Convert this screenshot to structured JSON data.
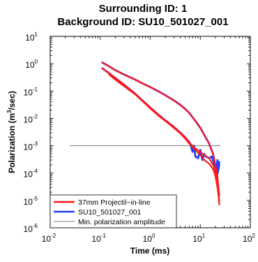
{
  "chart_data": {
    "type": "line",
    "title_lines": [
      "Surrounding ID: 1",
      "Background ID: SU10_501027_001"
    ],
    "xlabel": "Time (ms)",
    "ylabel_parts": [
      "Polarization (m",
      "3",
      "/sec)"
    ],
    "x_scale": "log",
    "y_scale": "log",
    "xlim": [
      0.01,
      100
    ],
    "ylim": [
      1e-06,
      10
    ],
    "x_ticks": [
      {
        "base": "10",
        "exp": "-2",
        "value": 0.01
      },
      {
        "base": "10",
        "exp": "-1",
        "value": 0.1
      },
      {
        "base": "10",
        "exp": "0",
        "value": 1
      },
      {
        "base": "10",
        "exp": "1",
        "value": 10
      },
      {
        "base": "10",
        "exp": "2",
        "value": 100
      }
    ],
    "y_ticks": [
      {
        "base": "10",
        "exp": "1",
        "value": 10
      },
      {
        "base": "10",
        "exp": "0",
        "value": 1
      },
      {
        "base": "10",
        "exp": "-1",
        "value": 0.1
      },
      {
        "base": "10",
        "exp": "-2",
        "value": 0.01
      },
      {
        "base": "10",
        "exp": "-3",
        "value": 0.001
      },
      {
        "base": "10",
        "exp": "-4",
        "value": 0.0001
      },
      {
        "base": "10",
        "exp": "-5",
        "value": 1e-05
      },
      {
        "base": "10",
        "exp": "-6",
        "value": 1e-06
      }
    ],
    "legend_position": "bottom-left",
    "series": [
      {
        "name": "SU10_501027_001",
        "color": "#1f3fff",
        "width": 2.8,
        "curves": [
          [
            [
              0.11,
              1.1
            ],
            [
              0.15,
              0.8
            ],
            [
              0.2,
              0.58
            ],
            [
              0.3,
              0.4
            ],
            [
              0.5,
              0.26
            ],
            [
              0.7,
              0.19
            ],
            [
              1.0,
              0.14
            ],
            [
              1.5,
              0.095
            ],
            [
              2.0,
              0.07
            ],
            [
              3.0,
              0.045
            ],
            [
              4.0,
              0.031
            ],
            [
              5.0,
              0.022
            ],
            [
              6.0,
              0.016
            ],
            [
              7.0,
              0.011
            ],
            [
              8.0,
              0.008
            ],
            [
              10.0,
              0.0045
            ],
            [
              12.0,
              0.0025
            ],
            [
              15.0,
              0.0012
            ],
            [
              18.0,
              0.0005
            ],
            [
              20.0,
              0.0002
            ],
            [
              22.0,
              9e-05
            ],
            [
              24.0,
              0.0002
            ]
          ],
          [
            [
              0.11,
              0.68
            ],
            [
              0.15,
              0.45
            ],
            [
              0.2,
              0.3
            ],
            [
              0.3,
              0.17
            ],
            [
              0.5,
              0.08
            ],
            [
              0.7,
              0.045
            ],
            [
              1.0,
              0.025
            ],
            [
              1.5,
              0.013
            ],
            [
              2.0,
              0.0085
            ],
            [
              3.0,
              0.0048
            ],
            [
              4.0,
              0.003
            ],
            [
              5.0,
              0.002
            ],
            [
              6.0,
              0.0014
            ],
            [
              6.5,
              0.001
            ],
            [
              7.0,
              0.0006
            ],
            [
              7.5,
              0.001
            ],
            [
              8.0,
              0.0004
            ],
            [
              9.0,
              0.00035
            ],
            [
              10.0,
              0.0007
            ],
            [
              11.0,
              0.0003
            ],
            [
              12.0,
              0.0005
            ],
            [
              13.0,
              0.0004
            ],
            [
              15.0,
              0.00035
            ],
            [
              17.0,
              0.0004
            ],
            [
              19.0,
              0.0002
            ],
            [
              21.0,
              0.0001
            ],
            [
              22.0,
              0.0003
            ],
            [
              23.0,
              0.0002
            ],
            [
              24.0,
              0.00025
            ]
          ]
        ]
      },
      {
        "name": "37mm Projectil~in-line",
        "color": "#ff1a1a",
        "width": 2.2,
        "curves": [
          [
            [
              0.11,
              1.1
            ],
            [
              0.15,
              0.8
            ],
            [
              0.2,
              0.58
            ],
            [
              0.3,
              0.4
            ],
            [
              0.5,
              0.26
            ],
            [
              0.7,
              0.19
            ],
            [
              1.0,
              0.14
            ],
            [
              1.5,
              0.095
            ],
            [
              2.0,
              0.07
            ],
            [
              3.0,
              0.045
            ],
            [
              4.0,
              0.031
            ],
            [
              5.0,
              0.022
            ],
            [
              6.0,
              0.016
            ],
            [
              7.0,
              0.011
            ],
            [
              8.0,
              0.008
            ],
            [
              10.0,
              0.0045
            ],
            [
              12.0,
              0.0025
            ],
            [
              15.0,
              0.0012
            ],
            [
              18.0,
              0.0005
            ],
            [
              20.0,
              0.0002
            ],
            [
              22.0,
              8e-05
            ],
            [
              24.0,
              1.5e-05
            ]
          ],
          [
            [
              0.11,
              0.68
            ],
            [
              0.15,
              0.45
            ],
            [
              0.2,
              0.3
            ],
            [
              0.3,
              0.17
            ],
            [
              0.5,
              0.08
            ],
            [
              0.7,
              0.045
            ],
            [
              1.0,
              0.025
            ],
            [
              1.5,
              0.013
            ],
            [
              2.0,
              0.0085
            ],
            [
              3.0,
              0.0048
            ],
            [
              4.0,
              0.003
            ],
            [
              5.0,
              0.002
            ],
            [
              6.0,
              0.0013
            ],
            [
              7.0,
              0.001
            ],
            [
              8.0,
              0.0008
            ],
            [
              10.0,
              0.0006
            ],
            [
              12.0,
              0.00045
            ],
            [
              15.0,
              0.00035
            ],
            [
              18.0,
              0.0002
            ],
            [
              20.0,
              0.00012
            ],
            [
              22.0,
              4e-05
            ],
            [
              24.0,
              7e-06
            ]
          ],
          [
            [
              0.15,
              0.4
            ],
            [
              0.2,
              0.26
            ],
            [
              0.3,
              0.15
            ],
            [
              0.5,
              0.075
            ],
            [
              0.7,
              0.042
            ],
            [
              1.0,
              0.023
            ],
            [
              1.5,
              0.012
            ],
            [
              2.0,
              0.008
            ],
            [
              3.0,
              0.0044
            ],
            [
              4.0,
              0.0028
            ],
            [
              5.0,
              0.0018
            ],
            [
              6.0,
              0.0012
            ],
            [
              8.0,
              0.0007
            ],
            [
              10.0,
              0.00045
            ],
            [
              12.0,
              0.0003
            ],
            [
              15.0,
              0.00022
            ],
            [
              18.0,
              0.00014
            ],
            [
              20.0,
              8e-05
            ],
            [
              22.0,
              3e-05
            ],
            [
              24.0,
              1e-05
            ]
          ]
        ]
      },
      {
        "name": "Min. polarization amplitude",
        "color": "#555555",
        "width": 0.8,
        "curves": [
          [
            [
              0.025,
              0.001
            ],
            [
              25,
              0.001
            ]
          ]
        ]
      }
    ],
    "legend": [
      {
        "label": "37mm Projectil~in-line",
        "color": "#ff1a1a",
        "width": 2.5
      },
      {
        "label": "SU10_501027_001",
        "color": "#1f3fff",
        "width": 2.5
      },
      {
        "label": "Min. polarization amplitude",
        "color": "#555555",
        "width": 0.8
      }
    ]
  }
}
